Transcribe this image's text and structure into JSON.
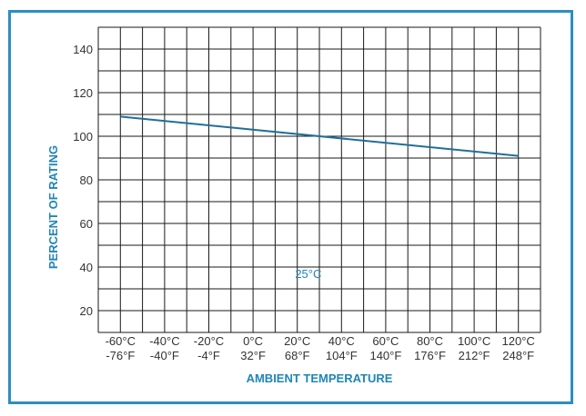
{
  "chart_data": {
    "type": "line",
    "xlabel": "AMBIENT TEMPERATURE",
    "ylabel": "PERCENT OF RATING",
    "xlim": [
      -70,
      130
    ],
    "ylim": [
      10,
      150
    ],
    "grid": true,
    "x_ticks": [
      -60,
      -40,
      -20,
      0,
      20,
      40,
      60,
      80,
      100,
      120
    ],
    "x_tick_labels": [
      {
        "c": "-60°C",
        "f": "-76°F"
      },
      {
        "c": "-40°C",
        "f": "-40°F"
      },
      {
        "c": "-20°C",
        "f": "-4°F"
      },
      {
        "c": "0°C",
        "f": "32°F"
      },
      {
        "c": "20°C",
        "f": "68°F"
      },
      {
        "c": "40°C",
        "f": "104°F"
      },
      {
        "c": "60°C",
        "f": "140°F"
      },
      {
        "c": "80°C",
        "f": "176°F"
      },
      {
        "c": "100°C",
        "f": "212°F"
      },
      {
        "c": "120°C",
        "f": "248°F"
      }
    ],
    "y_ticks": [
      20,
      40,
      60,
      80,
      100,
      120,
      140
    ],
    "series": [
      {
        "x": [
          -60,
          120
        ],
        "y": [
          109,
          91
        ]
      }
    ],
    "annotations": [
      {
        "text": "25°C",
        "x": 25,
        "y": 37
      }
    ],
    "colors": {
      "line": "#1f6f9a",
      "grid": "#1a1a1a",
      "border": "#2b8fbf",
      "labels": "#1f86b7"
    }
  }
}
